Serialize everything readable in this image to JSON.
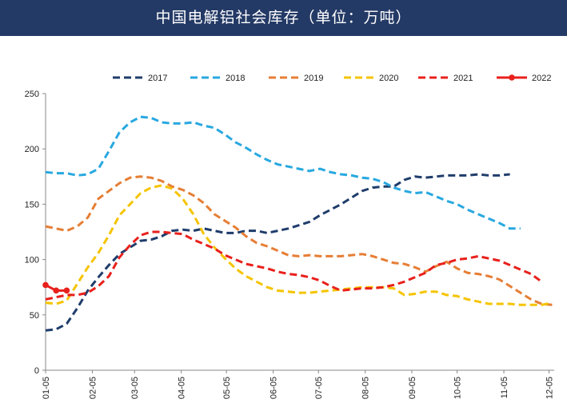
{
  "header": {
    "title": "中国电解铝社会库存（单位：万吨）"
  },
  "chart_data": {
    "type": "line",
    "title": "中国电解铝社会库存（单位：万吨）",
    "xlabel": "",
    "ylabel": "",
    "ylim": [
      0,
      250
    ],
    "yticks": [
      0,
      50,
      100,
      150,
      200,
      250
    ],
    "xlim": [
      0,
      48.2
    ],
    "x_unit": "week",
    "xticks": [
      {
        "label": "01-05",
        "x": 0
      },
      {
        "label": "02-05",
        "x": 4.43
      },
      {
        "label": "03-05",
        "x": 8.43
      },
      {
        "label": "04-05",
        "x": 12.86
      },
      {
        "label": "05-05",
        "x": 17.14
      },
      {
        "label": "06-05",
        "x": 21.57
      },
      {
        "label": "07-05",
        "x": 25.86
      },
      {
        "label": "08-05",
        "x": 30.29
      },
      {
        "label": "09-05",
        "x": 34.71
      },
      {
        "label": "10-05",
        "x": 39.0
      },
      {
        "label": "11-05",
        "x": 43.43
      },
      {
        "label": "12-05",
        "x": 47.71
      }
    ],
    "grid": false,
    "legend_position": "top",
    "series": [
      {
        "name": "2017",
        "color": "#1f3d6b",
        "dash": "dashed",
        "marker": false,
        "points": [
          [
            0,
            36
          ],
          [
            1,
            37
          ],
          [
            2,
            42
          ],
          [
            3,
            56
          ],
          [
            4,
            72
          ],
          [
            5,
            84
          ],
          [
            6,
            95
          ],
          [
            7,
            105
          ],
          [
            8,
            111
          ],
          [
            9,
            117
          ],
          [
            10,
            118
          ],
          [
            11,
            121
          ],
          [
            12,
            126
          ],
          [
            13,
            127
          ],
          [
            14,
            126
          ],
          [
            15,
            128
          ],
          [
            16,
            126
          ],
          [
            17,
            124
          ],
          [
            18,
            124
          ],
          [
            19,
            126
          ],
          [
            20,
            126
          ],
          [
            21,
            124
          ],
          [
            22,
            126
          ],
          [
            23,
            128
          ],
          [
            24,
            131
          ],
          [
            25,
            134
          ],
          [
            26,
            140
          ],
          [
            27,
            145
          ],
          [
            28,
            150
          ],
          [
            29,
            156
          ],
          [
            30,
            162
          ],
          [
            31,
            165
          ],
          [
            32,
            166
          ],
          [
            33,
            166
          ],
          [
            34,
            172
          ],
          [
            35,
            175
          ],
          [
            36,
            174
          ],
          [
            37,
            175
          ],
          [
            38,
            176
          ],
          [
            39,
            176
          ],
          [
            40,
            176
          ],
          [
            41,
            177
          ],
          [
            42,
            176
          ],
          [
            43,
            176
          ],
          [
            44,
            177
          ]
        ]
      },
      {
        "name": "2018",
        "color": "#28a8e0",
        "dash": "dashed",
        "marker": false,
        "points": [
          [
            0,
            179
          ],
          [
            1,
            178
          ],
          [
            2,
            178
          ],
          [
            3,
            176
          ],
          [
            4,
            177
          ],
          [
            5,
            182
          ],
          [
            6,
            198
          ],
          [
            7,
            215
          ],
          [
            8,
            224
          ],
          [
            9,
            229
          ],
          [
            10,
            228
          ],
          [
            11,
            224
          ],
          [
            12,
            223
          ],
          [
            13,
            223
          ],
          [
            14,
            224
          ],
          [
            15,
            221
          ],
          [
            16,
            219
          ],
          [
            17,
            213
          ],
          [
            18,
            206
          ],
          [
            19,
            201
          ],
          [
            20,
            195
          ],
          [
            21,
            190
          ],
          [
            22,
            186
          ],
          [
            23,
            184
          ],
          [
            24,
            182
          ],
          [
            25,
            180
          ],
          [
            26,
            182
          ],
          [
            27,
            179
          ],
          [
            28,
            177
          ],
          [
            29,
            176
          ],
          [
            30,
            174
          ],
          [
            31,
            173
          ],
          [
            32,
            170
          ],
          [
            33,
            165
          ],
          [
            34,
            162
          ],
          [
            35,
            160
          ],
          [
            36,
            161
          ],
          [
            37,
            157
          ],
          [
            38,
            153
          ],
          [
            39,
            150
          ],
          [
            40,
            145
          ],
          [
            41,
            141
          ],
          [
            42,
            137
          ],
          [
            43,
            133
          ],
          [
            44,
            128
          ],
          [
            45,
            128
          ]
        ]
      },
      {
        "name": "2019",
        "color": "#e67e35",
        "dash": "dashed",
        "marker": false,
        "points": [
          [
            0,
            130
          ],
          [
            1,
            128
          ],
          [
            2,
            126
          ],
          [
            3,
            130
          ],
          [
            4,
            138
          ],
          [
            5,
            155
          ],
          [
            6,
            162
          ],
          [
            7,
            169
          ],
          [
            8,
            174
          ],
          [
            9,
            175
          ],
          [
            10,
            174
          ],
          [
            11,
            171
          ],
          [
            12,
            166
          ],
          [
            13,
            163
          ],
          [
            14,
            158
          ],
          [
            15,
            151
          ],
          [
            16,
            141
          ],
          [
            17,
            135
          ],
          [
            18,
            129
          ],
          [
            19,
            121
          ],
          [
            20,
            115
          ],
          [
            21,
            112
          ],
          [
            22,
            108
          ],
          [
            23,
            104
          ],
          [
            24,
            103
          ],
          [
            25,
            104
          ],
          [
            26,
            103
          ],
          [
            27,
            103
          ],
          [
            28,
            103
          ],
          [
            29,
            104
          ],
          [
            30,
            105
          ],
          [
            31,
            103
          ],
          [
            32,
            100
          ],
          [
            33,
            97
          ],
          [
            34,
            96
          ],
          [
            35,
            93
          ],
          [
            36,
            89
          ],
          [
            37,
            94
          ],
          [
            38,
            98
          ],
          [
            39,
            92
          ],
          [
            40,
            88
          ],
          [
            41,
            87
          ],
          [
            42,
            85
          ],
          [
            43,
            82
          ],
          [
            44,
            76
          ],
          [
            45,
            70
          ],
          [
            46,
            64
          ],
          [
            47,
            60
          ],
          [
            48,
            59
          ]
        ]
      },
      {
        "name": "2020",
        "color": "#f5c400",
        "dash": "dashed",
        "marker": false,
        "points": [
          [
            0,
            61
          ],
          [
            1,
            60
          ],
          [
            2,
            63
          ],
          [
            3,
            78
          ],
          [
            4,
            93
          ],
          [
            5,
            106
          ],
          [
            6,
            122
          ],
          [
            7,
            140
          ],
          [
            8,
            150
          ],
          [
            9,
            160
          ],
          [
            10,
            165
          ],
          [
            11,
            167
          ],
          [
            12,
            164
          ],
          [
            13,
            155
          ],
          [
            14,
            141
          ],
          [
            15,
            123
          ],
          [
            16,
            111
          ],
          [
            17,
            101
          ],
          [
            18,
            92
          ],
          [
            19,
            85
          ],
          [
            20,
            80
          ],
          [
            21,
            75
          ],
          [
            22,
            72
          ],
          [
            23,
            71
          ],
          [
            24,
            70
          ],
          [
            25,
            70
          ],
          [
            26,
            71
          ],
          [
            27,
            72
          ],
          [
            28,
            73
          ],
          [
            29,
            74
          ],
          [
            30,
            75
          ],
          [
            31,
            75
          ],
          [
            32,
            75
          ],
          [
            33,
            74
          ],
          [
            34,
            68
          ],
          [
            35,
            69
          ],
          [
            36,
            71
          ],
          [
            37,
            71
          ],
          [
            38,
            68
          ],
          [
            39,
            67
          ],
          [
            40,
            64
          ],
          [
            41,
            62
          ],
          [
            42,
            60
          ],
          [
            43,
            60
          ],
          [
            44,
            60
          ],
          [
            45,
            59
          ],
          [
            46,
            59
          ],
          [
            47,
            59
          ],
          [
            48,
            61
          ]
        ]
      },
      {
        "name": "2021",
        "color": "#e8201c",
        "dash": "dashed",
        "marker": false,
        "points": [
          [
            0,
            64
          ],
          [
            1,
            66
          ],
          [
            2,
            68
          ],
          [
            3,
            68
          ],
          [
            4,
            70
          ],
          [
            5,
            76
          ],
          [
            6,
            85
          ],
          [
            7,
            102
          ],
          [
            8,
            113
          ],
          [
            9,
            122
          ],
          [
            10,
            125
          ],
          [
            11,
            125
          ],
          [
            12,
            124
          ],
          [
            13,
            123
          ],
          [
            14,
            118
          ],
          [
            15,
            114
          ],
          [
            16,
            110
          ],
          [
            17,
            104
          ],
          [
            18,
            100
          ],
          [
            19,
            96
          ],
          [
            20,
            94
          ],
          [
            21,
            92
          ],
          [
            22,
            89
          ],
          [
            23,
            87
          ],
          [
            24,
            86
          ],
          [
            25,
            84
          ],
          [
            26,
            81
          ],
          [
            27,
            76
          ],
          [
            28,
            72
          ],
          [
            29,
            73
          ],
          [
            30,
            74
          ],
          [
            31,
            74
          ],
          [
            32,
            75
          ],
          [
            33,
            77
          ],
          [
            34,
            80
          ],
          [
            35,
            84
          ],
          [
            36,
            88
          ],
          [
            37,
            95
          ],
          [
            38,
            97
          ],
          [
            39,
            100
          ],
          [
            40,
            101
          ],
          [
            41,
            103
          ],
          [
            42,
            101
          ],
          [
            43,
            99
          ],
          [
            44,
            95
          ],
          [
            45,
            91
          ],
          [
            46,
            87
          ],
          [
            47,
            80
          ]
        ]
      },
      {
        "name": "2022",
        "color": "#e8201c",
        "dash": "solid",
        "marker": true,
        "points": [
          [
            0,
            77
          ],
          [
            1,
            72
          ],
          [
            2,
            72
          ]
        ]
      }
    ]
  }
}
